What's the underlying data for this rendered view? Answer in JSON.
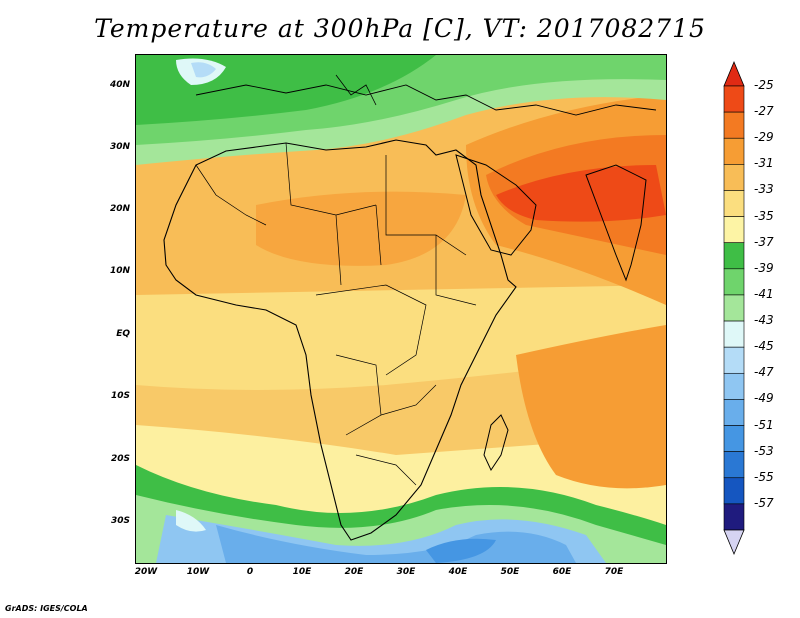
{
  "title": "Temperature at 300hPa [C], VT: 2017082715",
  "credit": "GrADS: IGES/COLA",
  "lat_ticks": [
    "40N",
    "30N",
    "20N",
    "10N",
    "EQ",
    "10S",
    "20S",
    "30S"
  ],
  "lat_values": [
    40,
    30,
    20,
    10,
    0,
    -10,
    -20,
    -30
  ],
  "lon_ticks": [
    "20W",
    "10W",
    "0",
    "10E",
    "20E",
    "30E",
    "40E",
    "50E",
    "60E",
    "70E"
  ],
  "lon_values": [
    -20,
    -10,
    0,
    10,
    20,
    30,
    40,
    50,
    60,
    70
  ],
  "map_extent": {
    "lon_min": -22,
    "lon_max": 80,
    "lat_min": -37,
    "lat_max": 45
  },
  "colorbar": {
    "labels": [
      "-25",
      "-27",
      "-29",
      "-31",
      "-33",
      "-35",
      "-37",
      "-39",
      "-41",
      "-43",
      "-45",
      "-47",
      "-49",
      "-51",
      "-53",
      "-55",
      "-57"
    ],
    "colors_top_to_bottom": [
      "#ee4a17",
      "#f37a22",
      "#f69d34",
      "#f8bd57",
      "#fbde7f",
      "#fdf4a5",
      "#3fbe46",
      "#6fd46c",
      "#a4e69a",
      "#dff8f8",
      "#b4dcf7",
      "#8fc6f2",
      "#69aeeb",
      "#4596e3",
      "#2a78d4",
      "#1556c0",
      "#1f1b7e"
    ],
    "top_arrow_color": "#e02a14",
    "bottom_arrow_color": "#d6d4f2"
  }
}
